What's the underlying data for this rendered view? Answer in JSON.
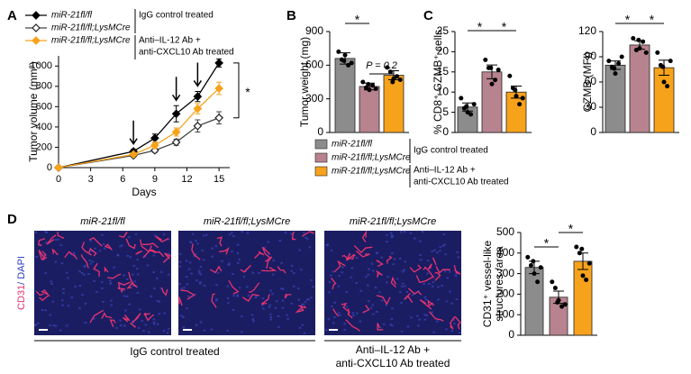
{
  "panel_labels": [
    "A",
    "B",
    "C",
    "D"
  ],
  "groups": [
    {
      "name": "miR-21fl/fl",
      "color": "#8c8c8c"
    },
    {
      "name": "miR-21fl/fl;LysMCre",
      "color": "#b7838f"
    },
    {
      "name": "miR-21fl/fl;LysMCre",
      "color": "#f7a21b"
    }
  ],
  "treatments": [
    "IgG control treated",
    [
      "Anti–IL-12 Ab +",
      "anti-CXCL10 Ab treated"
    ]
  ],
  "images": {
    "titles": [
      "miR-21fl/fl",
      "miR-21fl/fl;LysMCre",
      "miR-21fl/fl;LysMCre"
    ],
    "ylabel": "CD31/ DAPI"
  },
  "chart_data": [
    {
      "type": "line",
      "ylabel": "Tumor volume (mm³)",
      "xlabel": "Days",
      "x": [
        0,
        7,
        9,
        11,
        13,
        15
      ],
      "series": [
        {
          "name": "miR-21fl/fl",
          "color": "#000000",
          "filled": true,
          "values": [
            0,
            160,
            290,
            530,
            700,
            1030
          ],
          "errors": [
            0,
            20,
            40,
            80,
            50,
            40
          ]
        },
        {
          "name": "miR-21fl/fl;LysMCre",
          "color": "#444444",
          "filled": false,
          "values": [
            0,
            120,
            170,
            250,
            410,
            490
          ],
          "errors": [
            0,
            15,
            20,
            30,
            60,
            60
          ]
        },
        {
          "name": "miR-21fl/fl;LysMCre",
          "color": "#f7a21b",
          "filled": true,
          "values": [
            0,
            130,
            220,
            350,
            580,
            780
          ],
          "errors": [
            0,
            15,
            30,
            40,
            50,
            60
          ]
        }
      ],
      "xlim": [
        0,
        16
      ],
      "xticks": [
        0,
        3,
        6,
        9,
        12,
        15
      ],
      "ylim": [
        0,
        1100
      ],
      "yticks": [
        0,
        200,
        400,
        600,
        800,
        1000
      ],
      "arrows": [
        7,
        11,
        13
      ],
      "annotations": [
        "*"
      ]
    },
    {
      "type": "bar",
      "ylabel": "Tumor weight (mg)",
      "values": [
        660,
        410,
        510
      ],
      "errors": [
        50,
        30,
        40
      ],
      "colors": [
        "#8c8c8c",
        "#b7838f",
        "#f7a21b"
      ],
      "points": [
        [
          720,
          650,
          690,
          600,
          620,
          640
        ],
        [
          450,
          400,
          380,
          420,
          390,
          430
        ],
        [
          580,
          540,
          480,
          500,
          470,
          450
        ]
      ],
      "ylim": [
        0,
        900
      ],
      "yticks": [
        0,
        300,
        600,
        900
      ],
      "annotations": [
        "*",
        "P = 0.2"
      ]
    },
    {
      "type": "bar",
      "ylabel": "% CD8⁺ GZMB⁺ cells",
      "values": [
        6.3,
        15,
        10
      ],
      "errors": [
        1,
        1.7,
        1.5
      ],
      "colors": [
        "#8c8c8c",
        "#b7838f",
        "#f7a21b"
      ],
      "points": [
        [
          8.5,
          6,
          5,
          4.5,
          7,
          6.5
        ],
        [
          18,
          16,
          12,
          13,
          15.5,
          16
        ],
        [
          14,
          11,
          9,
          7,
          8.5,
          10.5
        ]
      ],
      "ylim": [
        0,
        25
      ],
      "yticks": [
        0,
        5,
        10,
        15,
        20,
        25
      ],
      "annotations": [
        "*",
        "*"
      ]
    },
    {
      "type": "bar",
      "ylabel": "GZMB (MFI)",
      "values": [
        80,
        104,
        77
      ],
      "errors": [
        5,
        5,
        9
      ],
      "colors": [
        "#8c8c8c",
        "#b7838f",
        "#f7a21b"
      ],
      "points": [
        [
          85,
          78,
          70,
          82,
          90,
          76
        ],
        [
          112,
          98,
          100,
          108,
          95,
          110
        ],
        [
          95,
          80,
          60,
          55,
          85,
          78
        ]
      ],
      "ylim": [
        0,
        120
      ],
      "yticks": [
        0,
        30,
        60,
        90,
        120
      ],
      "annotations": [
        "*",
        "*"
      ]
    },
    {
      "type": "bar",
      "ylabel": [
        "CD31⁺ vessel-like",
        "structures /area"
      ],
      "values": [
        330,
        185,
        360
      ],
      "errors": [
        30,
        30,
        40
      ],
      "colors": [
        "#8c8c8c",
        "#b7838f",
        "#f7a21b"
      ],
      "points": [
        [
          380,
          340,
          300,
          260,
          330,
          360
        ],
        [
          260,
          230,
          170,
          140,
          150,
          160
        ],
        [
          430,
          400,
          290,
          270,
          350,
          420
        ]
      ],
      "ylim": [
        0,
        500
      ],
      "yticks": [
        0,
        100,
        200,
        300,
        400,
        500
      ],
      "annotations": [
        "*",
        "*"
      ]
    }
  ]
}
